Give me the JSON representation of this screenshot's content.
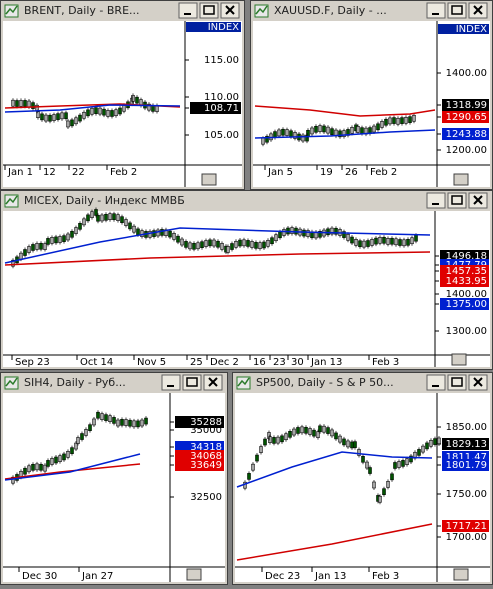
{
  "windows": [
    {
      "title": "BRENT, Daily - BRE...",
      "index_label": "INDEX",
      "price_labels": [
        {
          "text": "115.00"
        },
        {
          "text": "110.00"
        },
        {
          "text": "108.71",
          "tag": "#000000"
        },
        {
          "text": "105.00"
        }
      ],
      "x_labels": [
        "Jan 1",
        "12",
        "22",
        "Feb 2"
      ]
    },
    {
      "title": "XAUUSD.F, Daily - ...",
      "index_label": "INDEX",
      "price_labels": [
        {
          "text": "1400.00"
        },
        {
          "text": "1318.99",
          "tag": "#000000"
        },
        {
          "text": "1290.65",
          "tag": "#e00000"
        },
        {
          "text": "1243.88",
          "tag": "#0020d0"
        },
        {
          "text": "1200.00"
        }
      ],
      "x_labels": [
        "Jan 5",
        "19",
        "26",
        "Feb 2"
      ]
    },
    {
      "title": "MICEX, Daily - Индекс ММВБ",
      "price_labels": [
        {
          "text": "1496.18",
          "tag": "#000000"
        },
        {
          "text": "1477.79",
          "tag": "#0020d0"
        },
        {
          "text": "1457.35",
          "tag": "#e00000"
        },
        {
          "text": "1433.95",
          "tag": "#e00000"
        },
        {
          "text": "1400.00"
        },
        {
          "text": "1375.00",
          "tag": "#0020d0"
        },
        {
          "text": "1300.00"
        }
      ],
      "x_labels": [
        "Sep 23",
        "Oct 14",
        "Nov 5",
        "25",
        "Dec 2",
        "16",
        "23",
        "30",
        "Jan 13",
        "Feb 3"
      ]
    },
    {
      "title": "SIH4, Daily - Руб...",
      "price_labels": [
        {
          "text": "35288",
          "tag": "#000000"
        },
        {
          "text": "35000"
        },
        {
          "text": "34318",
          "tag": "#0020d0"
        },
        {
          "text": "34068",
          "tag": "#e00000"
        },
        {
          "text": "33649",
          "tag": "#e00000"
        },
        {
          "text": "32500"
        }
      ],
      "x_labels": [
        "Dec 30",
        "Jan 27"
      ]
    },
    {
      "title": "SP500, Daily - S & P 50...",
      "price_labels": [
        {
          "text": "1850.00"
        },
        {
          "text": "1829.13",
          "tag": "#000000"
        },
        {
          "text": "1811.47",
          "tag": "#0020d0"
        },
        {
          "text": "1801.79",
          "tag": "#0020d0"
        },
        {
          "text": "1750.00"
        },
        {
          "text": "1717.21",
          "tag": "#e00000"
        },
        {
          "text": "1700.00"
        }
      ],
      "x_labels": [
        "Dec 23",
        "Jan 13",
        "Feb 3"
      ]
    }
  ]
}
